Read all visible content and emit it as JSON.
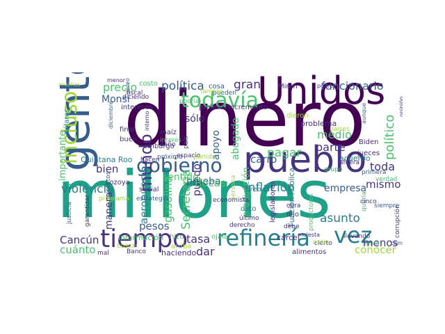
{
  "palette": [
    "#440154",
    "#46327e",
    "#365c8d",
    "#277f8e",
    "#1fa187",
    "#4ac16d",
    "#a0da39",
    "#fde725"
  ],
  "words": [
    {
      "id": "dinero",
      "text": "dinero",
      "color": "#440154"
    },
    {
      "id": "millones",
      "text": "millones",
      "color": "#1fa187"
    },
    {
      "id": "unidos",
      "text": "Unidos",
      "color": "#440154"
    },
    {
      "id": "gente",
      "text": "gente",
      "color": "#365c8d"
    },
    {
      "id": "pueblo",
      "text": "pueblo",
      "color": "#46327e"
    },
    {
      "id": "tiempo",
      "text": "tiempo",
      "color": "#46327e"
    },
    {
      "id": "refineria",
      "text": "refinería",
      "color": "#277f8e"
    },
    {
      "id": "gobierno",
      "text": "gobierno",
      "color": "#365c8d"
    },
    {
      "id": "todavia",
      "text": "todavía",
      "color": "#4ac16d"
    },
    {
      "id": "incluso",
      "text": "incluso",
      "color": "#a0da39"
    },
    {
      "id": "mundo",
      "text": "mundo",
      "color": "#46327e"
    },
    {
      "id": "vez",
      "text": "vez",
      "color": "#277f8e"
    },
    {
      "id": "politica",
      "text": "política",
      "color": "#365c8d"
    },
    {
      "id": "gran",
      "text": "gran",
      "color": "#46327e"
    },
    {
      "id": "funcionario",
      "text": "funcionario",
      "color": "#365c8d"
    },
    {
      "id": "precio",
      "text": "precio",
      "color": "#4ac16d"
    },
    {
      "id": "politico",
      "text": "político",
      "color": "#4ac16d"
    },
    {
      "id": "violencia",
      "text": "violencia",
      "color": "#277f8e"
    },
    {
      "id": "inflacion",
      "text": "inflación",
      "color": "#277f8e"
    },
    {
      "id": "asunto",
      "text": "asunto",
      "color": "#277f8e"
    },
    {
      "id": "secretaria",
      "text": "Secretaría",
      "color": "#4ac16d"
    },
    {
      "id": "gasolina",
      "text": "gasolina",
      "color": "#4ac16d"
    },
    {
      "id": "aeropuerto",
      "text": "aeropuerto",
      "color": "#277f8e"
    },
    {
      "id": "pagar",
      "text": "pagar",
      "color": "#4ac16d"
    },
    {
      "id": "parte",
      "text": "parte",
      "color": "#46327e"
    },
    {
      "id": "medio",
      "text": "medio",
      "color": "#4ac16d"
    },
    {
      "id": "toda",
      "text": "toda",
      "color": "#46327e"
    },
    {
      "id": "bien",
      "text": "bien",
      "color": "#46327e"
    },
    {
      "id": "manera",
      "text": "manera",
      "color": "#46327e"
    },
    {
      "id": "puedo",
      "text": "puedo",
      "color": "#46327e"
    },
    {
      "id": "tasa",
      "text": "tasa",
      "color": "#46327e"
    },
    {
      "id": "cancun",
      "text": "Cancún",
      "color": "#46327e"
    },
    {
      "id": "cuanto",
      "text": "cuánto",
      "color": "#4ac16d"
    },
    {
      "id": "dar",
      "text": "dar",
      "color": "#46327e"
    },
    {
      "id": "conocer",
      "text": "conocer",
      "color": "#a0da39"
    },
    {
      "id": "menos",
      "text": "menos",
      "color": "#46327e"
    },
    {
      "id": "mismo",
      "text": "mismo",
      "color": "#46327e"
    },
    {
      "id": "empresa",
      "text": "empresa",
      "color": "#365c8d"
    },
    {
      "id": "carro",
      "text": "carro",
      "color": "#365c8d"
    },
    {
      "id": "abogado",
      "text": "abogado",
      "color": "#4ac16d"
    },
    {
      "id": "apoyo",
      "text": "apoyo",
      "color": "#365c8d"
    },
    {
      "id": "prueba",
      "text": "prueba",
      "color": "#365c8d"
    },
    {
      "id": "bocas",
      "text": "Bocas",
      "color": "#4ac16d"
    },
    {
      "id": "pesos",
      "text": "pesos",
      "color": "#365c8d"
    },
    {
      "id": "sentido",
      "text": "sentido",
      "color": "#4ac16d"
    },
    {
      "id": "produccion",
      "text": "producción",
      "color": "#4ac16d"
    },
    {
      "id": "monsi",
      "text": "Monsi",
      "color": "#365c8d"
    },
    {
      "id": "solo",
      "text": "sólo",
      "color": "#46327e"
    },
    {
      "id": "importante",
      "text": "importante",
      "color": "#4ac16d"
    },
    {
      "id": "quintana-roo",
      "text": "Quintana Roo",
      "color": "#277f8e"
    },
    {
      "id": "acuerdo",
      "text": "acuerdo",
      "color": "#277f8e"
    },
    {
      "id": "problema",
      "text": "problema",
      "color": "#46327e"
    },
    {
      "id": "funcion-publica",
      "text": "Función Pública",
      "color": "#277f8e"
    },
    {
      "id": "costo",
      "text": "costo",
      "color": "#4ac16d"
    },
    {
      "id": "cosa",
      "text": "cosa",
      "color": "#365c8d"
    },
    {
      "id": "pueden",
      "text": "pueden",
      "color": "#365c8d"
    },
    {
      "id": "famoso",
      "text": "famoso",
      "color": "#a0da39"
    },
    {
      "id": "podria",
      "text": "podría",
      "color": "#4ac16d"
    },
    {
      "id": "producir",
      "text": "producir",
      "color": "#46327e"
    },
    {
      "id": "incremento",
      "text": "incremento",
      "color": "#46327e"
    },
    {
      "id": "intereses",
      "text": "intereses",
      "color": "#46327e"
    },
    {
      "id": "fiscal",
      "text": "fiscal",
      "color": "#46327e"
    },
    {
      "id": "menor",
      "text": "menor",
      "color": "#46327e"
    },
    {
      "id": "muchas",
      "text": "muchas",
      "color": "#a0da39"
    },
    {
      "id": "aereo",
      "text": "aéreo",
      "color": "#365c8d"
    },
    {
      "id": "diciendo",
      "text": "diciendo",
      "color": "#46327e"
    },
    {
      "id": "dolares",
      "text": "dólares",
      "color": "#277f8e"
    },
    {
      "id": "diciembre",
      "text": "diciembre",
      "color": "#365c8d"
    },
    {
      "id": "final",
      "text": "final",
      "color": "#46327e"
    },
    {
      "id": "buen",
      "text": "buen",
      "color": "#46327e"
    },
    {
      "id": "embargo",
      "text": "embargo",
      "color": "#46327e"
    },
    {
      "id": "interno",
      "text": "interno",
      "color": "#46327e"
    },
    {
      "id": "maiz",
      "text": "maíz",
      "color": "#46327e"
    },
    {
      "id": "interes",
      "text": "interés",
      "color": "#4ac16d"
    },
    {
      "id": "pais",
      "text": "país",
      "color": "#365c8d"
    },
    {
      "id": "dano",
      "text": "daño",
      "color": "#46327e"
    },
    {
      "id": "hacen",
      "text": "hacen",
      "color": "#46327e"
    },
    {
      "id": "espacio",
      "text": "espacio",
      "color": "#46327e"
    },
    {
      "id": "proximo",
      "text": "próximo",
      "color": "#365c8d"
    },
    {
      "id": "partido",
      "text": "partido",
      "color": "#a0da39"
    },
    {
      "id": "social",
      "text": "social",
      "color": "#46327e"
    },
    {
      "id": "lozoya",
      "text": "Lozoya",
      "color": "#46327e"
    },
    {
      "id": "expertos",
      "text": "expertos",
      "color": "#365c8d"
    },
    {
      "id": "programa",
      "text": "programa",
      "color": "#a0da39"
    },
    {
      "id": "justicia",
      "text": "justicia",
      "color": "#365c8d"
    },
    {
      "id": "garantizar",
      "text": "garantizar",
      "color": "#46327e"
    },
    {
      "id": "estrategia",
      "text": "estrategia",
      "color": "#365c8d"
    },
    {
      "id": "informacion",
      "text": "información",
      "color": "#4ac16d"
    },
    {
      "id": "hizo",
      "text": "hizo",
      "color": "#4ac16d"
    },
    {
      "id": "ojala",
      "text": "ojalá",
      "color": "#4ac16d"
    },
    {
      "id": "arriba",
      "text": "arriba",
      "color": "#a0da39"
    },
    {
      "id": "haciendo",
      "text": "haciendo",
      "color": "#46327e"
    },
    {
      "id": "mal",
      "text": "mal",
      "color": "#46327e"
    },
    {
      "id": "buscar",
      "text": "buscar",
      "color": "#a0da39"
    },
    {
      "id": "banco",
      "text": "Banco",
      "color": "#46327e"
    },
    {
      "id": "economista",
      "text": "economista",
      "color": "#46327e"
    },
    {
      "id": "dato",
      "text": "dato",
      "color": "#277f8e"
    },
    {
      "id": "ultimo",
      "text": "último",
      "color": "#46327e"
    },
    {
      "id": "derecho",
      "text": "derecho",
      "color": "#46327e"
    },
    {
      "id": "persona",
      "text": "persona",
      "color": "#a0da39"
    },
    {
      "id": "creo",
      "text": "creo",
      "color": "#277f8e"
    },
    {
      "id": "obra",
      "text": "obra",
      "color": "#46327e"
    },
    {
      "id": "dijo",
      "text": "dijo",
      "color": "#46327e"
    },
    {
      "id": "legisladores",
      "text": "legisladores",
      "color": "#46327e"
    },
    {
      "id": "carcel",
      "text": "cárcel",
      "color": "#46327e"
    },
    {
      "id": "alimentos",
      "text": "alimentos",
      "color": "#46327e"
    },
    {
      "id": "debe",
      "text": "debe",
      "color": "#46327e"
    },
    {
      "id": "productores",
      "text": "productores",
      "color": "#4ac16d"
    },
    {
      "id": "cierto",
      "text": "cierto",
      "color": "#46327e"
    },
    {
      "id": "grupo",
      "text": "grupo",
      "color": "#4ac16d"
    },
    {
      "id": "queria",
      "text": "quería",
      "color": "#4ac16d"
    },
    {
      "id": "corrupcion",
      "text": "corrupción",
      "color": "#46327e"
    },
    {
      "id": "siempre",
      "text": "siempre",
      "color": "#365c8d"
    },
    {
      "id": "llevando",
      "text": "llevando",
      "color": "#46327e"
    },
    {
      "id": "lleva",
      "text": "lleva",
      "color": "#4ac16d"
    },
    {
      "id": "campana",
      "text": "campaña",
      "color": "#365c8d"
    },
    {
      "id": "cinco",
      "text": "cinco",
      "color": "#46327e"
    },
    {
      "id": "verdad",
      "text": "verdad",
      "color": "#4ac16d"
    },
    {
      "id": "primera",
      "text": "primera",
      "color": "#365c8d"
    },
    {
      "id": "afuera",
      "text": "afuera",
      "color": "#46327e"
    },
    {
      "id": "jueces",
      "text": "jueces",
      "color": "#46327e"
    },
    {
      "id": "biden",
      "text": "Biden",
      "color": "#46327e"
    },
    {
      "id": "aunque",
      "text": "aunque",
      "color": "#365c8d"
    },
    {
      "id": "paises",
      "text": "países",
      "color": "#a0da39"
    },
    {
      "id": "dieron",
      "text": "dieron",
      "color": "#a0da39"
    },
    {
      "id": "miren",
      "text": "Miren",
      "color": "#46327e"
    },
    {
      "id": "pobre",
      "text": "pobre",
      "color": "#46327e"
    },
    {
      "id": "opinion",
      "text": "opinión",
      "color": "#46327e"
    },
    {
      "id": "poder",
      "text": "poder",
      "color": "#a0da39"
    },
    {
      "id": "molesta",
      "text": "molesta",
      "color": "#46327e"
    }
  ]
}
